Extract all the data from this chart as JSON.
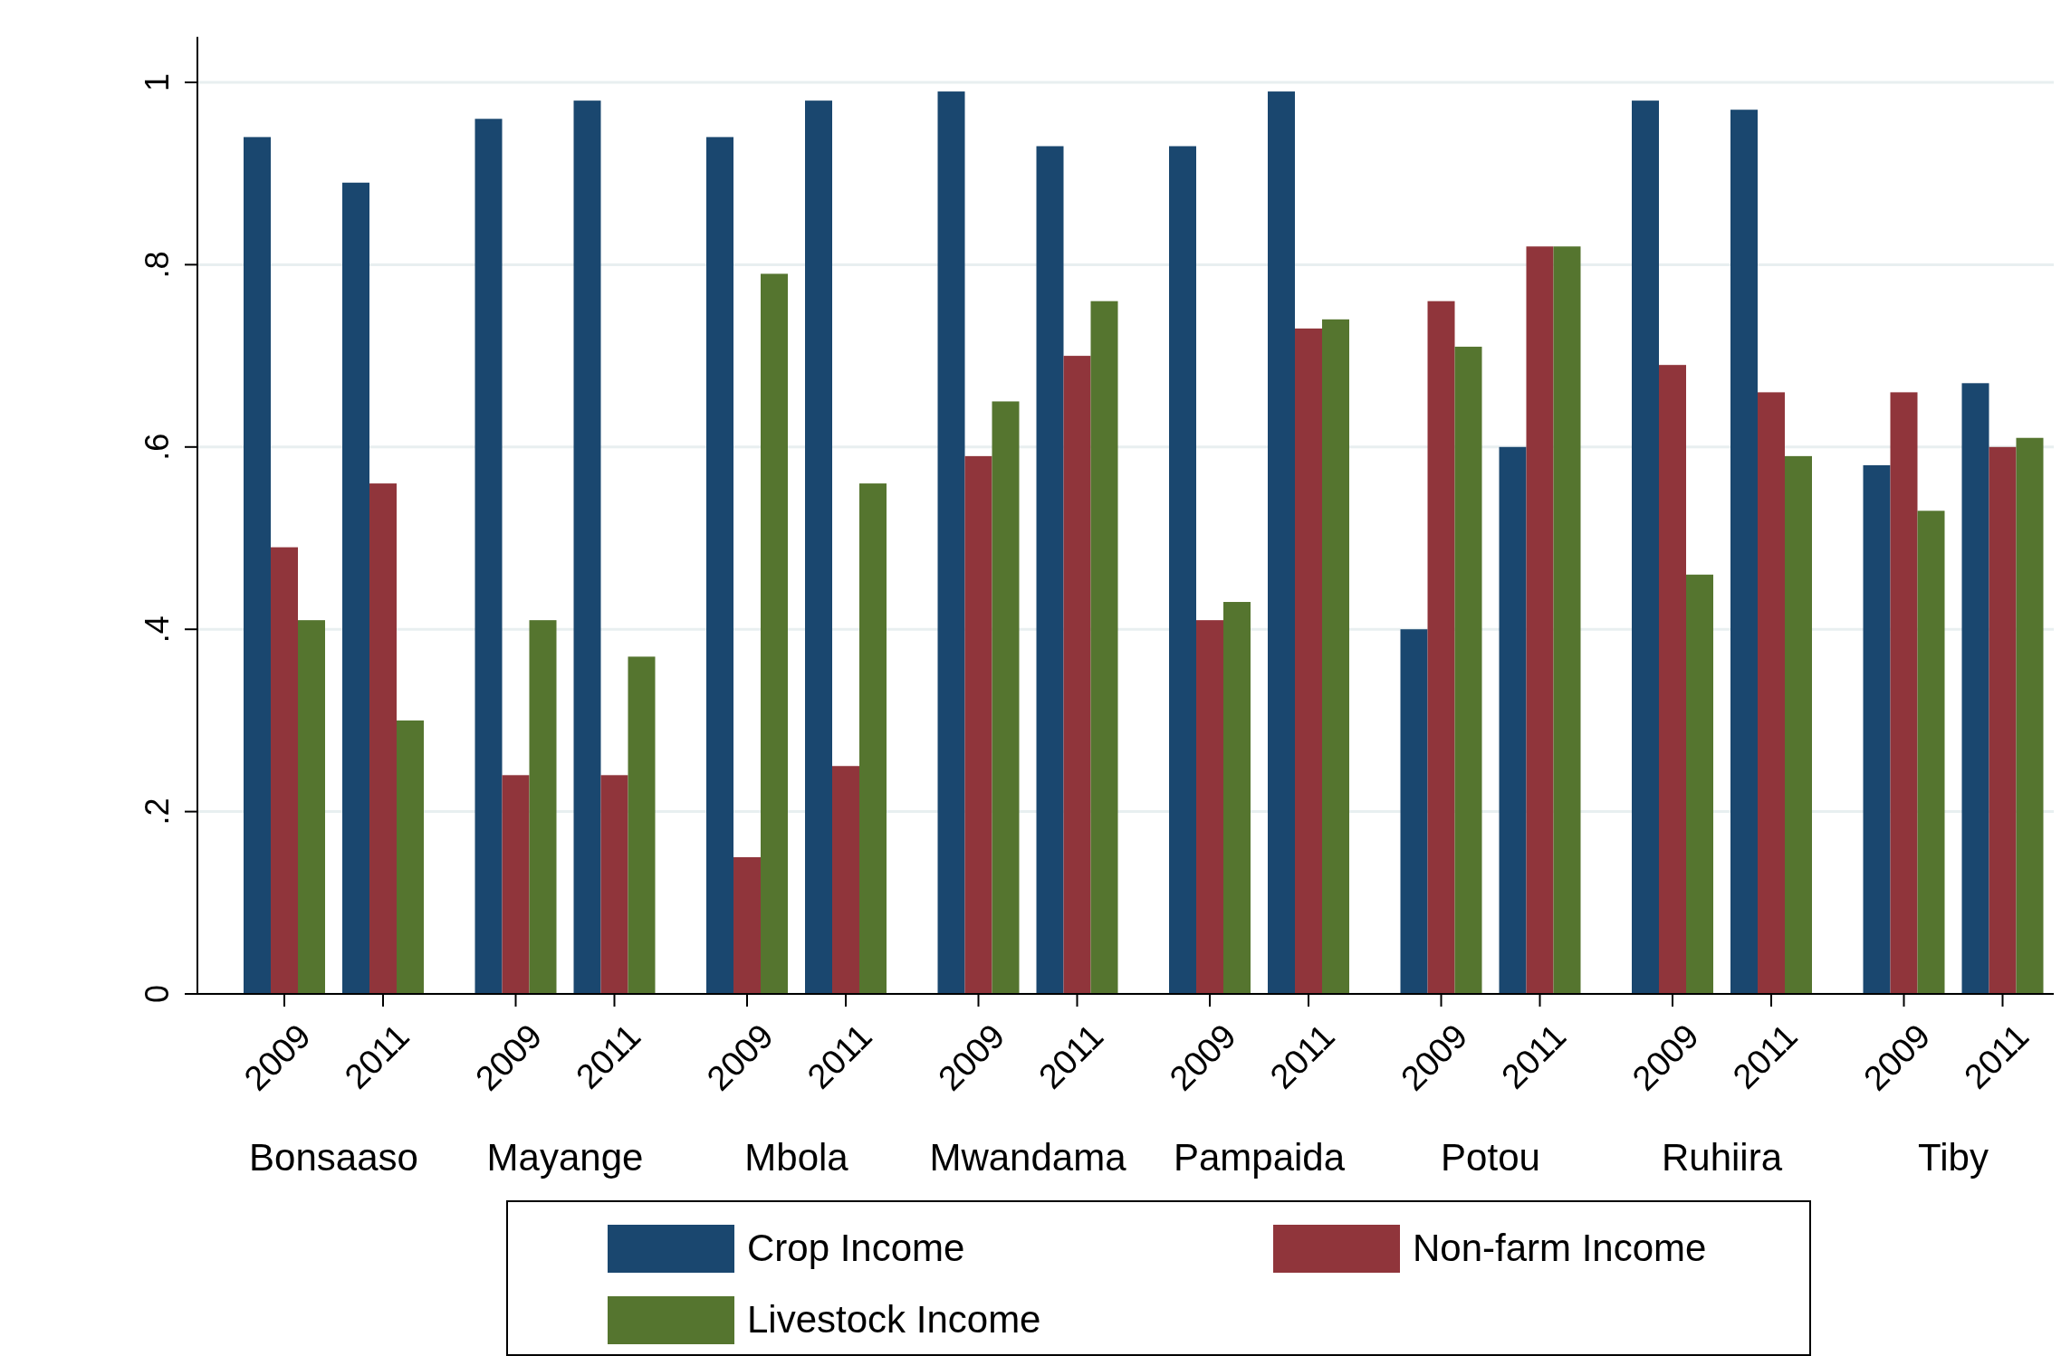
{
  "chart_data": {
    "type": "bar",
    "categories": [
      "2009",
      "2011",
      "2009",
      "2011",
      "2009",
      "2011",
      "2009",
      "2011",
      "2009",
      "2011",
      "2009",
      "2011",
      "2009",
      "2011",
      "2009",
      "2011"
    ],
    "series": [
      {
        "name": "Crop Income",
        "color": "#1a476f",
        "values": [
          0.94,
          0.89,
          0.96,
          0.98,
          0.94,
          0.98,
          0.99,
          0.93,
          0.93,
          0.99,
          0.4,
          0.6,
          0.98,
          0.97,
          0.58,
          0.67
        ]
      },
      {
        "name": "Non-farm Income",
        "color": "#90353b",
        "values": [
          0.49,
          0.56,
          0.24,
          0.24,
          0.15,
          0.25,
          0.59,
          0.7,
          0.41,
          0.73,
          0.76,
          0.82,
          0.69,
          0.66,
          0.66,
          0.6
        ]
      },
      {
        "name": "Livestock Income",
        "color": "#55752f",
        "values": [
          0.41,
          0.3,
          0.41,
          0.37,
          0.79,
          0.56,
          0.65,
          0.76,
          0.43,
          0.74,
          0.71,
          0.82,
          0.46,
          0.59,
          0.53,
          0.61
        ]
      }
    ],
    "annotations": [
      "Bonsaaso",
      "Mayange",
      "Mbola",
      "Mwandama",
      "Pampaida",
      "Potou",
      "Ruhiira",
      "Tiby"
    ],
    "ylim": [
      0,
      1.05
    ],
    "yticks": [
      0,
      {
        "value": 0.2,
        "label": ".2"
      },
      {
        "value": 0.4,
        "label": ".4"
      },
      {
        "value": 0.6,
        "label": ".6"
      },
      {
        "value": 0.8,
        "label": ".8"
      },
      1
    ],
    "grid": "y",
    "legend": "bottom"
  }
}
